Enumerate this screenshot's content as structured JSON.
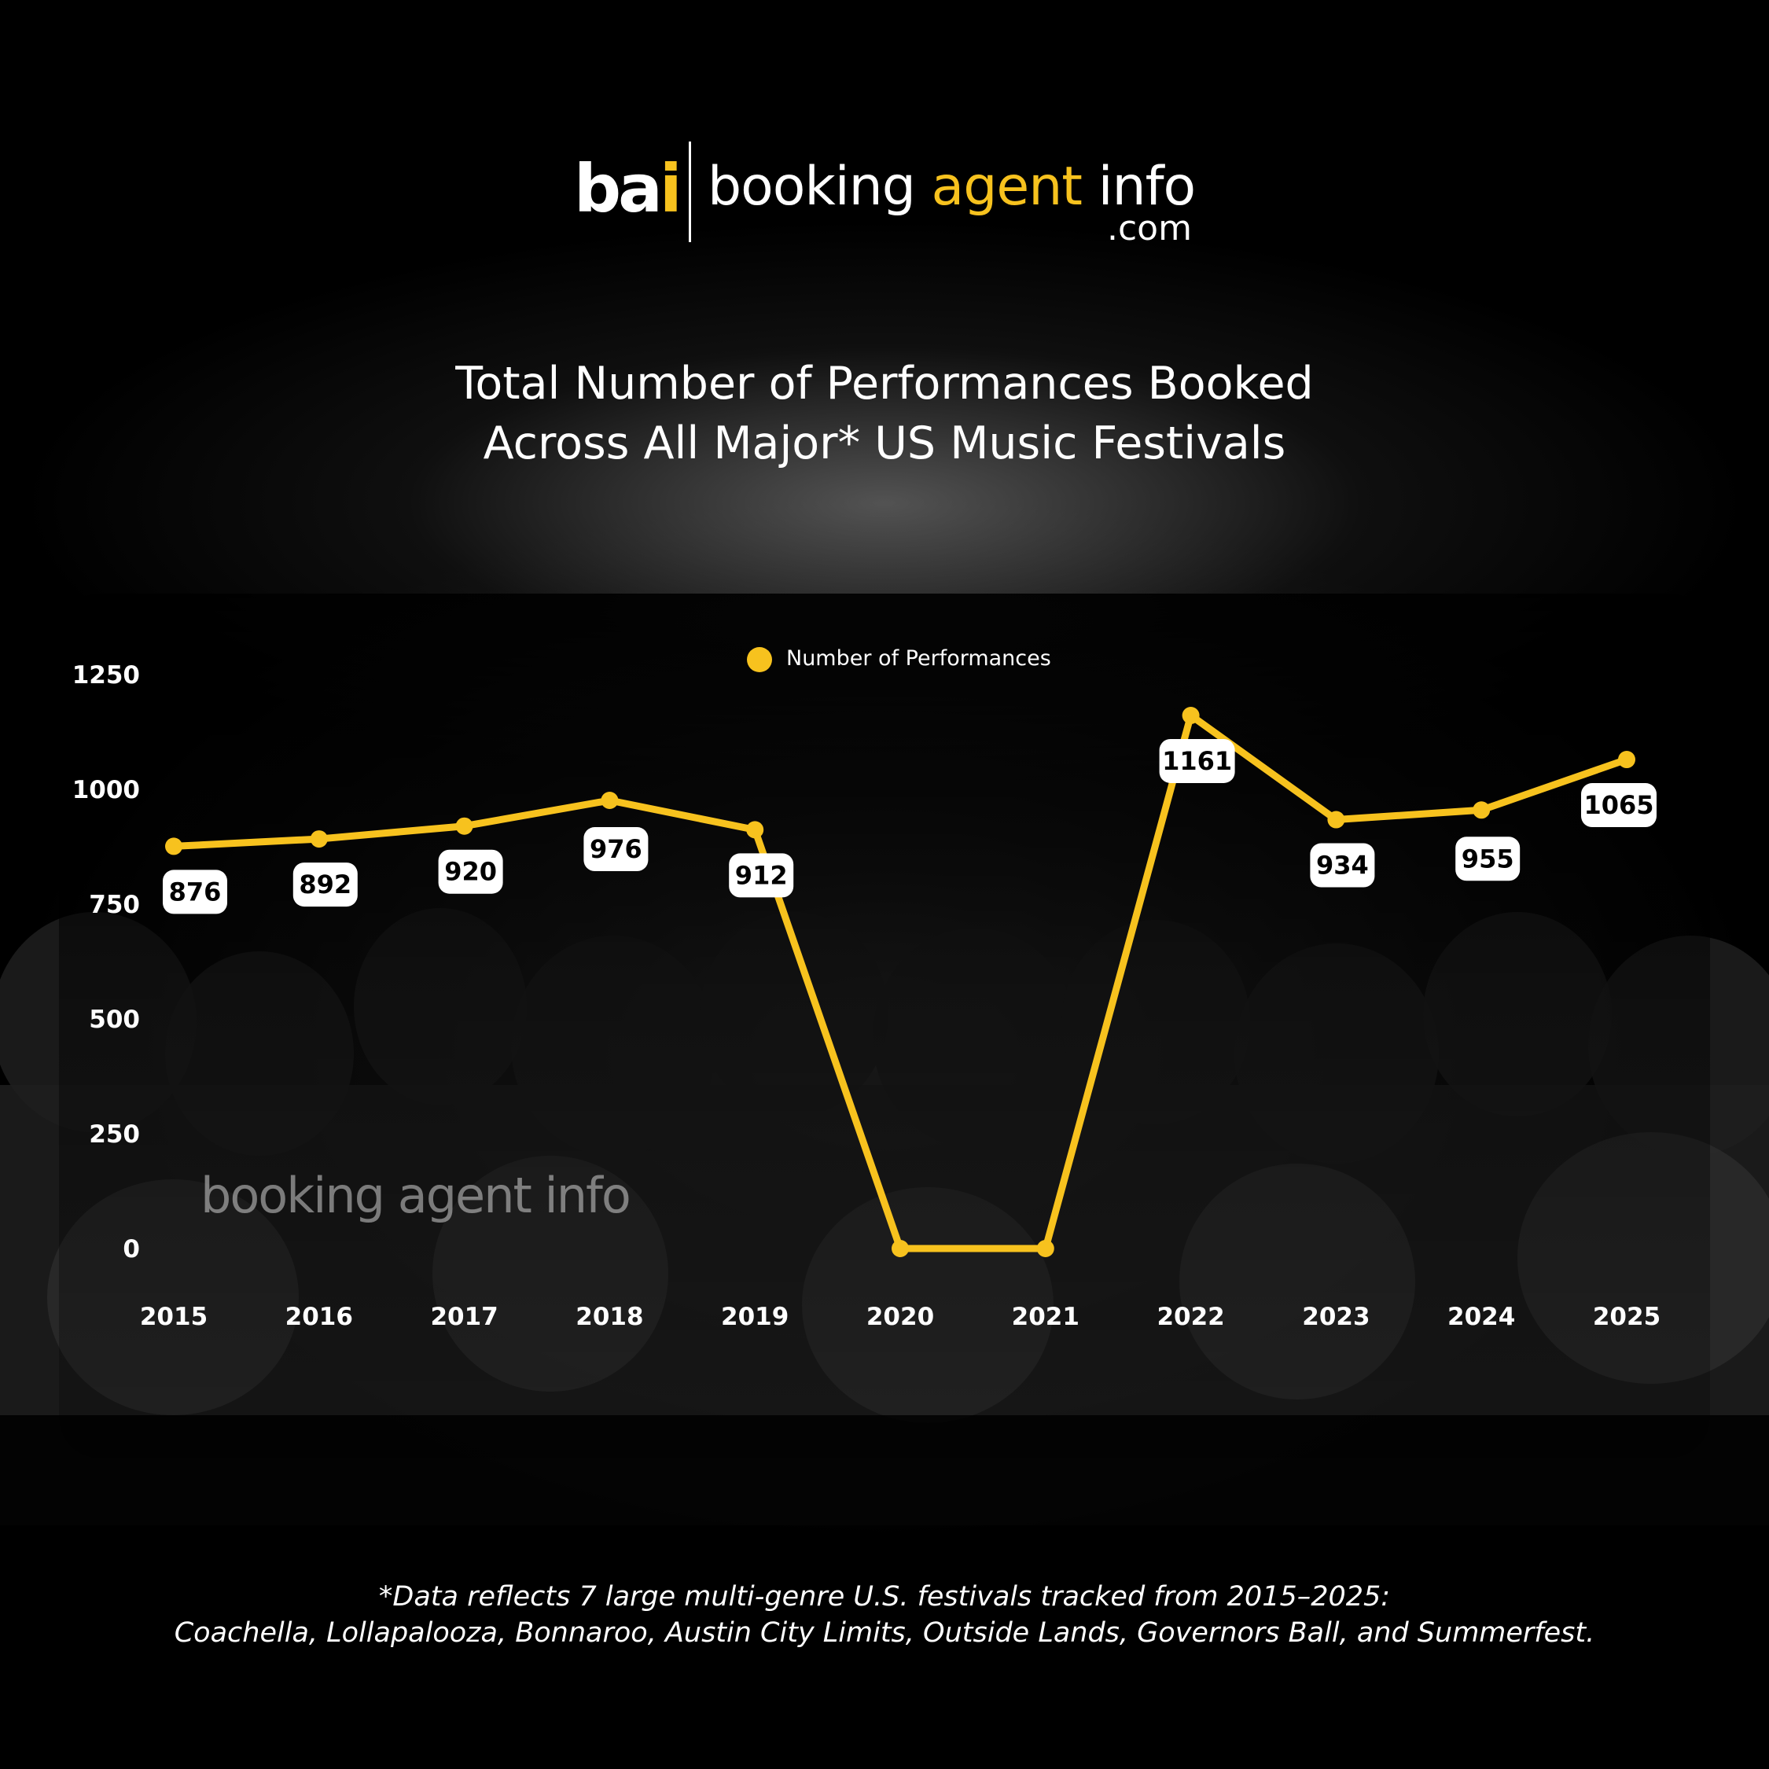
{
  "branding": {
    "mark_white": "ba",
    "mark_accent": "i",
    "word_booking": "booking",
    "word_agent": "agent",
    "word_info": "info",
    "domain": ".com",
    "watermark": "booking agent info"
  },
  "header": {
    "title_line1": "Total Number of Performances Booked",
    "title_line2": "Across All Major* US Music Festivals"
  },
  "footnote": {
    "line1": "*Data reflects 7 large multi-genre U.S. festivals tracked from 2015–2025:",
    "line2": "Coachella, Lollapalooza, Bonnaroo, Austin City Limits, Outside Lands, Governors Ball, and Summerfest."
  },
  "colors": {
    "accent": "#f7c21e",
    "label_bg": "#ffffff",
    "label_text": "#000000",
    "axis_text": "#ffffff"
  },
  "chart_data": {
    "type": "line",
    "title": "Total Number of Performances Booked Across All Major* US Music Festivals",
    "xlabel": "",
    "ylabel": "",
    "categories": [
      "2015",
      "2016",
      "2017",
      "2018",
      "2019",
      "2020",
      "2021",
      "2022",
      "2023",
      "2024",
      "2025"
    ],
    "series": [
      {
        "name": "Number of Performances",
        "color": "#f7c21e",
        "values": [
          876,
          892,
          920,
          976,
          912,
          0,
          0,
          1161,
          934,
          955,
          1065
        ],
        "data_labels": [
          "876",
          "892",
          "920",
          "976",
          "912",
          null,
          null,
          "1161",
          "934",
          "955",
          "1065"
        ]
      }
    ],
    "yticks": [
      0,
      250,
      500,
      750,
      1000,
      1250
    ],
    "ylim": [
      0,
      1250
    ],
    "grid": false,
    "legend": "top-center"
  }
}
